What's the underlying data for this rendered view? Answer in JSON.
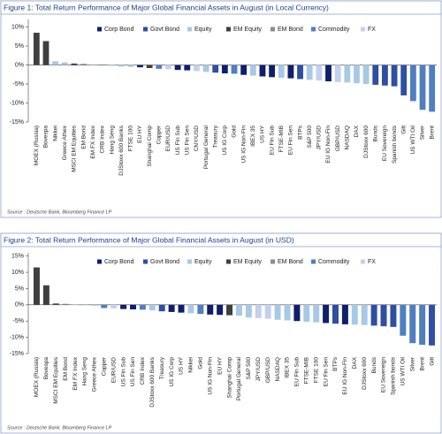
{
  "chart_data": [
    {
      "type": "bar",
      "title": "Figure 1: Total Return Performance of Major Global Financial Assets in August (in Local Currency)",
      "source": "Source : Deutsche Bank, Bloomberg Finance LP",
      "series": [
        {
          "name": "Corp Bond",
          "color": "#0f1f6b"
        },
        {
          "name": "Govt Bond",
          "color": "#2e4fa3"
        },
        {
          "name": "Equity",
          "color": "#a7c9e6"
        },
        {
          "name": "EM Equity",
          "color": "#3f3f3f"
        },
        {
          "name": "EM Bond",
          "color": "#8c8c8c"
        },
        {
          "name": "Commodity",
          "color": "#4f7fc0"
        },
        {
          "name": "FX",
          "color": "#c5d0ee"
        }
      ],
      "categories": [
        "MOEX (Russia)",
        "Bovespa",
        "Nikkei",
        "Greece Athex",
        "MSCI EM Equities",
        "EM Bond",
        "EM FX Index",
        "CRB Index",
        "Hang Seng",
        "DJStoxx 600 Banks",
        "FTSE 100",
        "EU HY",
        "Shanghai Comp",
        "Copper",
        "EUR/USD",
        "US Fin Sub",
        "US Fin Sen",
        "CNY/USD",
        "Portugal General",
        "Treasury",
        "US IG Corp",
        "Gold",
        "US IG Non-Fin",
        "IBEX 35",
        "US HY",
        "EU Fin Sub",
        "FTSE-MIB",
        "EU Fin Sen",
        "BTPs",
        "S&P 500",
        "JPY/USD",
        "EU IG Non-Fin",
        "GBP/USD",
        "NASDAQ",
        "DAX",
        "DJStoxx 600",
        "Bunds",
        "EU Sovereign",
        "Spanish bonds",
        "Gilt",
        "US WTI Oil",
        "Silver",
        "Brent"
      ],
      "values": [
        8.5,
        6.3,
        1.0,
        0.7,
        0.4,
        0.3,
        0.2,
        0.1,
        -0.2,
        -0.4,
        -0.5,
        -0.6,
        -0.8,
        -1.0,
        -1.1,
        -1.3,
        -1.4,
        -1.6,
        -1.8,
        -2.0,
        -2.2,
        -2.3,
        -2.6,
        -2.8,
        -3.0,
        -3.2,
        -3.4,
        -3.5,
        -3.7,
        -3.9,
        -4.1,
        -4.3,
        -4.5,
        -4.6,
        -4.8,
        -5.0,
        -5.2,
        -5.4,
        -5.6,
        -8.0,
        -9.5,
        -11.8,
        -12.3
      ],
      "colors": [
        "#3f3f3f",
        "#3f3f3f",
        "#a7c9e6",
        "#a7c9e6",
        "#3f3f3f",
        "#8c8c8c",
        "#c5d0ee",
        "#4f7fc0",
        "#a7c9e6",
        "#a7c9e6",
        "#a7c9e6",
        "#0f1f6b",
        "#3f3f3f",
        "#4f7fc0",
        "#c5d0ee",
        "#0f1f6b",
        "#0f1f6b",
        "#c5d0ee",
        "#a7c9e6",
        "#2e4fa3",
        "#0f1f6b",
        "#4f7fc0",
        "#0f1f6b",
        "#a7c9e6",
        "#0f1f6b",
        "#0f1f6b",
        "#a7c9e6",
        "#0f1f6b",
        "#2e4fa3",
        "#a7c9e6",
        "#c5d0ee",
        "#0f1f6b",
        "#c5d0ee",
        "#a7c9e6",
        "#a7c9e6",
        "#a7c9e6",
        "#2e4fa3",
        "#2e4fa3",
        "#2e4fa3",
        "#2e4fa3",
        "#4f7fc0",
        "#4f7fc0",
        "#4f7fc0"
      ],
      "ylim": [
        -15,
        12
      ],
      "yticks": [
        {
          "value": 10,
          "label": "10%"
        },
        {
          "value": 5,
          "label": "5%"
        },
        {
          "value": 0,
          "label": "0%"
        },
        {
          "value": -5,
          "label": "-5%"
        },
        {
          "value": -10,
          "label": "-10%"
        },
        {
          "value": -15,
          "label": "-15%"
        }
      ],
      "grid": false,
      "legend": "top"
    },
    {
      "type": "bar",
      "title": "Figure 2: Total Return Performance of Major Global Financial Assets in August (in USD)",
      "source": "Source : Deutsche Bank, Bloomberg Finance LP",
      "series": [
        {
          "name": "Corp Bond",
          "color": "#0f1f6b"
        },
        {
          "name": "Govt Bond",
          "color": "#2e4fa3"
        },
        {
          "name": "Equity",
          "color": "#a7c9e6"
        },
        {
          "name": "EM Equity",
          "color": "#3f3f3f"
        },
        {
          "name": "EM Bond",
          "color": "#8c8c8c"
        },
        {
          "name": "Commodity",
          "color": "#4f7fc0"
        },
        {
          "name": "FX",
          "color": "#c5d0ee"
        }
      ],
      "categories": [
        "MOEX (Russia)",
        "Bovespa",
        "MSCI EM Equities",
        "EM Bond",
        "EM FX Index",
        "Hang Seng",
        "Greece Athex",
        "Copper",
        "EUR/USD",
        "US Fin Sub",
        "US Fin Sen",
        "CRB Index",
        "DJStoxx 600 Banks",
        "Treasury",
        "US IG Corp",
        "US HY",
        "Nikkei",
        "Gold",
        "US IG Non-Fin",
        "EU HY",
        "Shanghai Comp",
        "Portugal General",
        "S&P 500",
        "JPY/USD",
        "GBP/USD",
        "NASDAQ",
        "IBEX 35",
        "EU Fin Sub",
        "FTSE-MIB",
        "FTSE 100",
        "EU Fin Sen",
        "BTPs",
        "EU IG Non-Fin",
        "DAX",
        "DJStoxx 600",
        "Bunds",
        "EU Sovereign",
        "Spanish bonds",
        "US WTI Oil",
        "Silver",
        "Brent",
        "Gilt"
      ],
      "values": [
        11.5,
        6.0,
        0.4,
        0.3,
        0.2,
        -0.1,
        -0.3,
        -1.0,
        -1.1,
        -1.3,
        -1.4,
        -1.5,
        -1.7,
        -2.0,
        -2.2,
        -2.4,
        -2.6,
        -2.8,
        -3.0,
        -3.1,
        -3.2,
        -3.3,
        -3.9,
        -4.1,
        -4.3,
        -4.6,
        -4.8,
        -5.0,
        -5.2,
        -5.4,
        -5.6,
        -5.8,
        -6.0,
        -6.1,
        -6.2,
        -6.4,
        -6.6,
        -6.8,
        -9.5,
        -11.8,
        -12.3,
        -12.5
      ],
      "colors": [
        "#3f3f3f",
        "#3f3f3f",
        "#3f3f3f",
        "#8c8c8c",
        "#c5d0ee",
        "#a7c9e6",
        "#a7c9e6",
        "#4f7fc0",
        "#c5d0ee",
        "#0f1f6b",
        "#0f1f6b",
        "#4f7fc0",
        "#a7c9e6",
        "#2e4fa3",
        "#0f1f6b",
        "#0f1f6b",
        "#a7c9e6",
        "#4f7fc0",
        "#0f1f6b",
        "#0f1f6b",
        "#3f3f3f",
        "#a7c9e6",
        "#a7c9e6",
        "#c5d0ee",
        "#c5d0ee",
        "#a7c9e6",
        "#a7c9e6",
        "#0f1f6b",
        "#a7c9e6",
        "#a7c9e6",
        "#0f1f6b",
        "#2e4fa3",
        "#0f1f6b",
        "#a7c9e6",
        "#a7c9e6",
        "#2e4fa3",
        "#2e4fa3",
        "#2e4fa3",
        "#4f7fc0",
        "#4f7fc0",
        "#4f7fc0",
        "#2e4fa3"
      ],
      "ylim": [
        -15,
        16
      ],
      "yticks": [
        {
          "value": 15,
          "label": "15%"
        },
        {
          "value": 10,
          "label": "10%"
        },
        {
          "value": 5,
          "label": "5%"
        },
        {
          "value": 0,
          "label": "0%"
        },
        {
          "value": -5,
          "label": "-5%"
        },
        {
          "value": -10,
          "label": "-10%"
        },
        {
          "value": -15,
          "label": "-15%"
        }
      ],
      "grid": false,
      "legend": "top"
    }
  ]
}
